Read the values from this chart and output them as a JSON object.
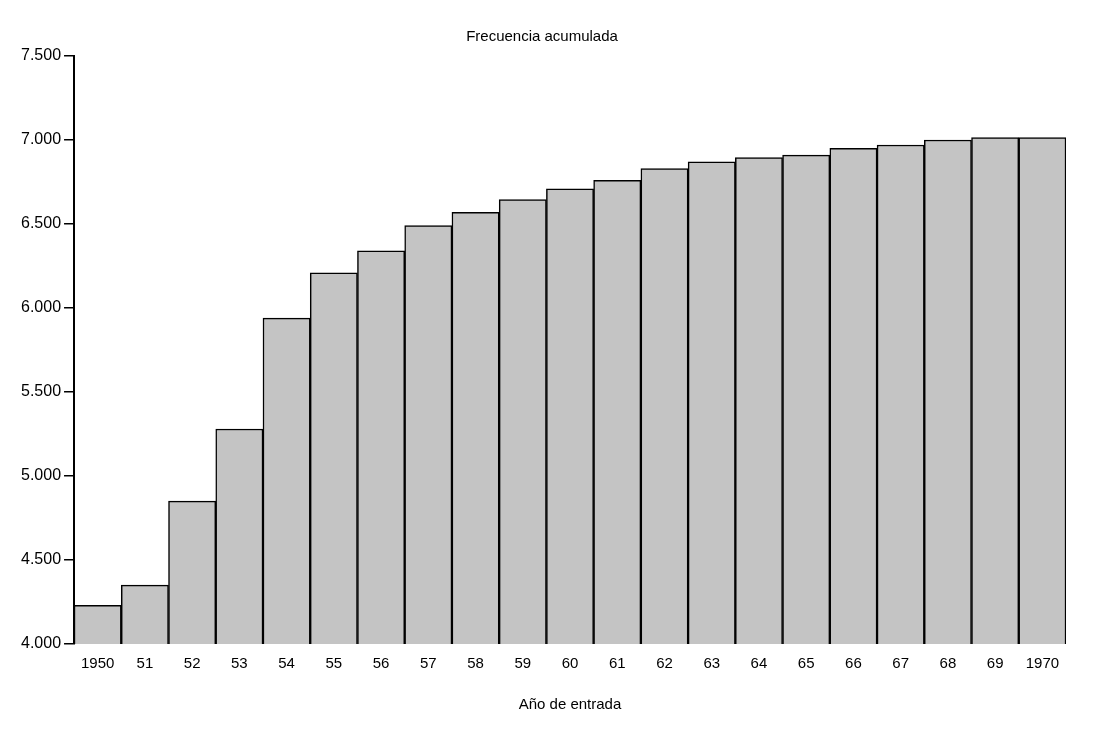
{
  "chart_data": {
    "type": "bar",
    "title": "Frecuencia acumulada",
    "xlabel": "Año de entrada",
    "categories": [
      "1950",
      "51",
      "52",
      "53",
      "54",
      "55",
      "56",
      "57",
      "58",
      "59",
      "60",
      "61",
      "62",
      "63",
      "64",
      "65",
      "66",
      "67",
      "68",
      "69",
      "1970"
    ],
    "values": [
      4230,
      4350,
      4850,
      5280,
      5940,
      6210,
      6340,
      6490,
      6570,
      6645,
      6710,
      6760,
      6830,
      6870,
      6895,
      6910,
      6950,
      6970,
      7000,
      7015,
      7015
    ],
    "color": "#c4c4c4",
    "ylim": [
      4000,
      7500
    ],
    "yticks": [
      {
        "value": 4000,
        "label": "4.000"
      },
      {
        "value": 4500,
        "label": "4.500"
      },
      {
        "value": 5000,
        "label": "5.000"
      },
      {
        "value": 5500,
        "label": "5.500"
      },
      {
        "value": 6000,
        "label": "6.000"
      },
      {
        "value": 6500,
        "label": "6.500"
      },
      {
        "value": 7000,
        "label": "7.000"
      },
      {
        "value": 7500,
        "label": "7.500"
      }
    ],
    "grid": false,
    "legend": false
  }
}
